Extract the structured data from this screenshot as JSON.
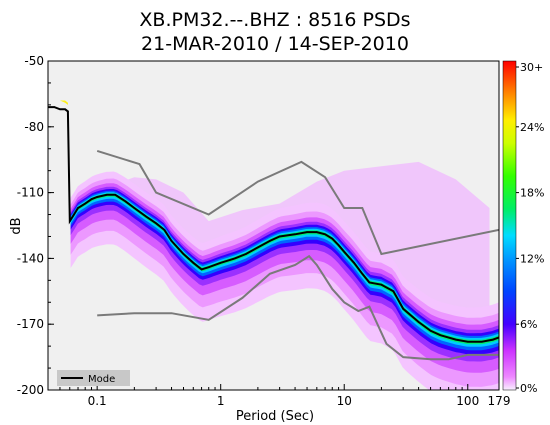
{
  "chart_data": {
    "type": "heatmap",
    "title_line1": "XB.PM32.--.BHZ : 8516 PSDs",
    "title_line2": "21-MAR-2010 / 14-SEP-2010",
    "xlabel": "Period (Sec)",
    "ylabel": "dB",
    "x_scale": "log",
    "xlim": [
      0.04,
      179
    ],
    "ylim": [
      -200,
      -50
    ],
    "x_ticks": [
      {
        "value": 0.1,
        "label": "0.1"
      },
      {
        "value": 1,
        "label": "1"
      },
      {
        "value": 10,
        "label": "10"
      },
      {
        "value": 100,
        "label": "100"
      },
      {
        "value": 179,
        "label": "179"
      }
    ],
    "y_ticks": [
      {
        "value": -50,
        "label": "-50"
      },
      {
        "value": -80,
        "label": "-80"
      },
      {
        "value": -110,
        "label": "-110"
      },
      {
        "value": -140,
        "label": "-140"
      },
      {
        "value": -170,
        "label": "-170"
      },
      {
        "value": -200,
        "label": "-200"
      }
    ],
    "colorbar": {
      "ticks": [
        {
          "value": 30,
          "label": "30+"
        },
        {
          "value": 24,
          "label": "24%"
        },
        {
          "value": 18,
          "label": "18%"
        },
        {
          "value": 12,
          "label": "12%"
        },
        {
          "value": 6,
          "label": "6%"
        },
        {
          "value": 0,
          "label": "0%"
        }
      ]
    },
    "legend": {
      "label": "Mode",
      "placement": "bottom-left"
    },
    "mode": {
      "x": [
        0.04,
        0.045,
        0.05,
        0.055,
        0.058,
        0.06,
        0.065,
        0.07,
        0.08,
        0.09,
        0.1,
        0.12,
        0.14,
        0.17,
        0.2,
        0.25,
        0.3,
        0.35,
        0.4,
        0.5,
        0.6,
        0.7,
        0.8,
        1.0,
        1.3,
        1.6,
        2,
        2.5,
        3,
        4,
        5,
        6,
        7,
        8,
        9,
        10,
        12,
        14,
        16,
        20,
        25,
        30,
        40,
        50,
        60,
        80,
        100,
        130,
        160,
        179
      ],
      "y": [
        -71,
        -71,
        -72,
        -72,
        -73,
        -123,
        -120,
        -117,
        -115,
        -113,
        -112,
        -111,
        -111,
        -114,
        -117,
        -121,
        -124,
        -127,
        -132,
        -138,
        -142,
        -145,
        -144,
        -142,
        -140,
        -138,
        -135,
        -132,
        -130,
        -129,
        -128,
        -128,
        -129,
        -131,
        -134,
        -137,
        -142,
        -147,
        -151,
        -152,
        -155,
        -163,
        -169,
        -173,
        -175,
        -177,
        -178,
        -178,
        -177,
        -176
      ]
    },
    "ref_line_upper": {
      "x": [
        0.1,
        0.22,
        0.3,
        0.8,
        2,
        4.5,
        7,
        10,
        14,
        20,
        179
      ],
      "y": [
        -91,
        -97,
        -110,
        -120,
        -105,
        -96,
        -103,
        -117,
        -117,
        -138,
        -127
      ]
    },
    "ref_line_lower": {
      "x": [
        0.1,
        0.2,
        0.4,
        0.8,
        1.5,
        2.5,
        4,
        5.2,
        6,
        8,
        10,
        13,
        16,
        22,
        30,
        50,
        70,
        100,
        179
      ],
      "y": [
        -166,
        -165,
        -165,
        -168,
        -158,
        -147,
        -143,
        -139,
        -143,
        -154,
        -160,
        -164,
        -162,
        -179,
        -185,
        -186,
        -186,
        -184,
        -184
      ]
    },
    "noise_clusters": [
      {
        "x": [
          0.04,
          0.045,
          0.05,
          0.055,
          0.058
        ],
        "y": [
          -67,
          -67,
          -68,
          -69,
          -70
        ]
      },
      {
        "x": [
          0.09,
          0.2,
          0.3,
          0.5,
          0.8,
          1.5,
          3,
          6,
          10,
          20,
          40,
          80,
          150
        ],
        "y": [
          -110,
          -103,
          -104,
          -110,
          -123,
          -118,
          -115,
          -105,
          -100,
          -98,
          -96,
          -104,
          -117
        ]
      }
    ]
  }
}
